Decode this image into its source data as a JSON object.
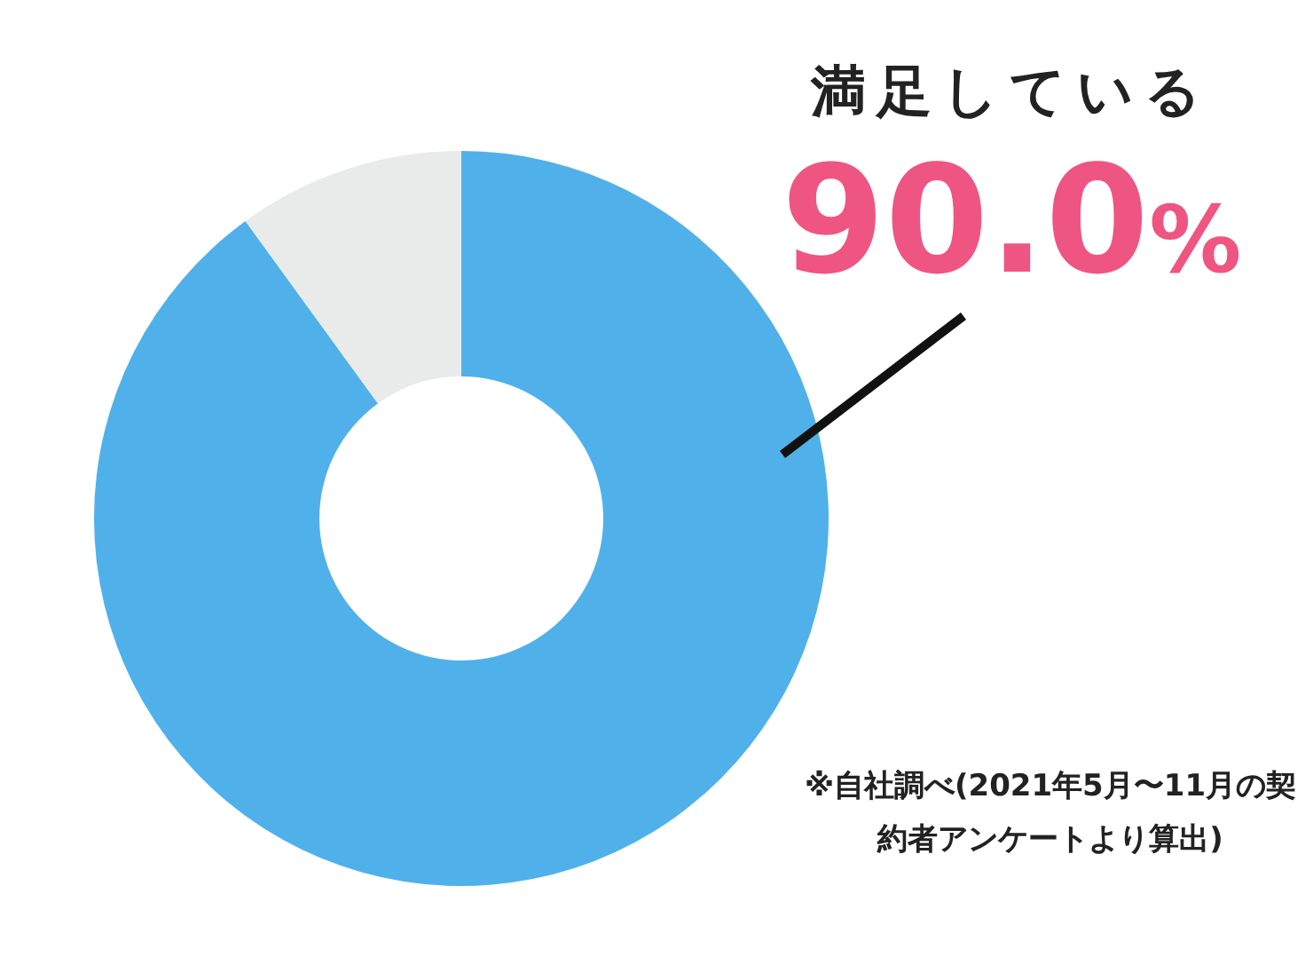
{
  "chart_data": {
    "type": "donut",
    "categories": [
      "満足している",
      null
    ],
    "values": [
      90.0,
      10
    ],
    "colors": [
      "#50b1ea",
      "#e9ebeb"
    ],
    "value_labels": [
      "90.0%",
      null
    ],
    "annotations": [
      "※自社調べ(2021年5月〜11月の契約者アンケートより算出)"
    ]
  }
}
